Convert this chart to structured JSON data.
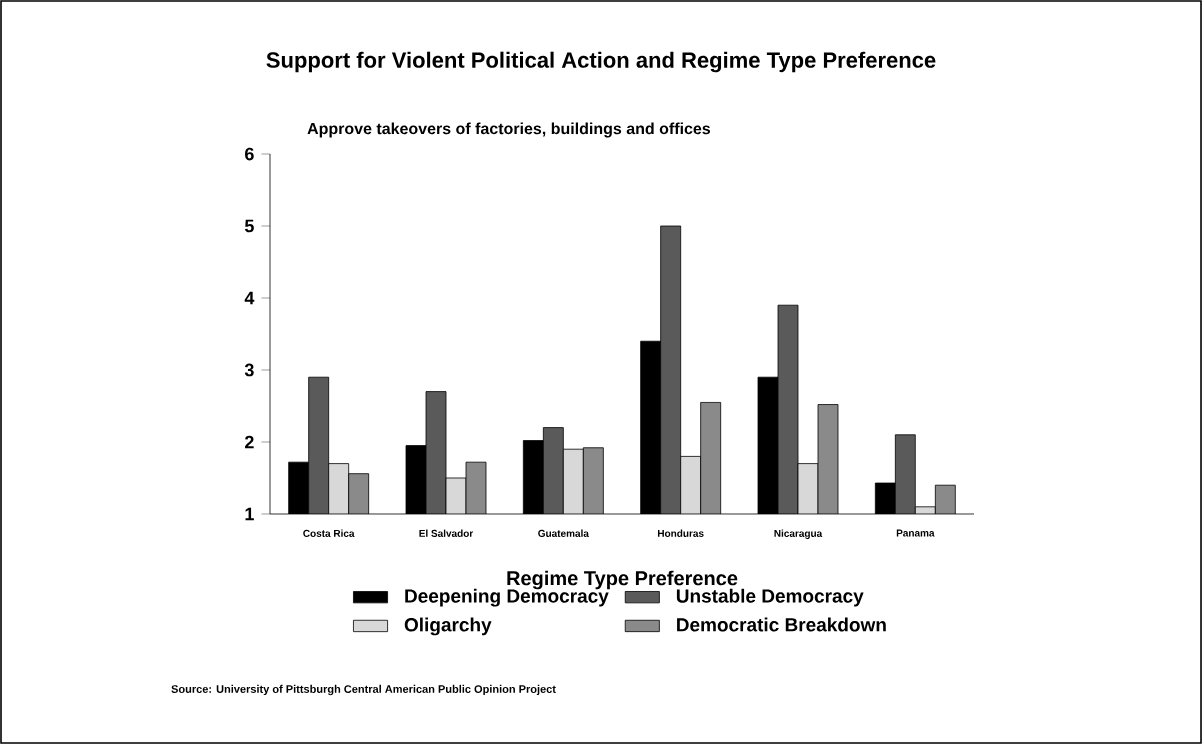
{
  "chart_data": {
    "type": "bar",
    "title": "Support for Violent Political Action and Regime Type Preference",
    "ylabel": "Approve takeovers of factories, buildings and offices",
    "legend_title": "Regime Type Preference",
    "annotations": [
      "Source: University of Pittsburgh Central American Public Opinion Project"
    ],
    "categories": [
      "Costa Rica",
      "El Salvador",
      "Guatemala",
      "Honduras",
      "Nicaragua",
      "Panama"
    ],
    "series": [
      {
        "name": "Deepening Democracy",
        "color": "#000000",
        "values": [
          1.72,
          1.95,
          2.02,
          3.4,
          2.9,
          1.43
        ]
      },
      {
        "name": "Unstable Democracy",
        "color": "#5a5a5a",
        "values": [
          2.9,
          2.7,
          2.2,
          5.0,
          3.9,
          2.1
        ]
      },
      {
        "name": "Oligarchy",
        "color": "#d8d8d8",
        "values": [
          1.7,
          1.5,
          1.9,
          1.8,
          1.7,
          1.1
        ]
      },
      {
        "name": "Democratic Breakdown",
        "color": "#8a8a8a",
        "values": [
          1.56,
          1.72,
          1.92,
          2.55,
          2.52,
          1.4
        ]
      }
    ],
    "ylim": [
      1,
      6
    ],
    "yticks": [
      1,
      2,
      3,
      4,
      5,
      6
    ],
    "grid": false,
    "legend": "bottom"
  }
}
